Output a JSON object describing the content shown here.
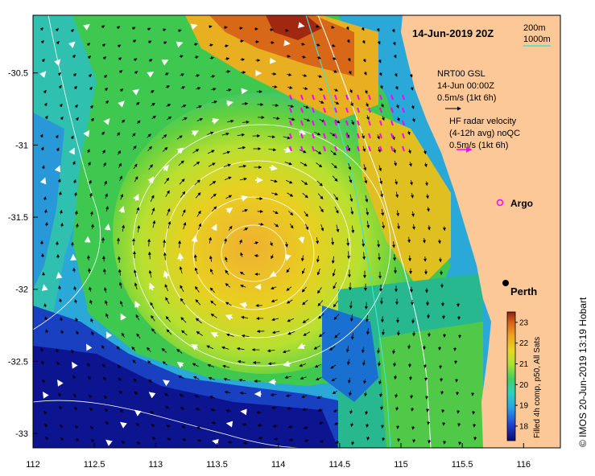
{
  "map": {
    "title": "14-Jun-2019 20Z",
    "lon_ticks": [
      "112",
      "112.5",
      "113",
      "113.5",
      "114",
      "114.5",
      "115",
      "115.5",
      "116"
    ],
    "lat_ticks": [
      "-30.5",
      "-31",
      "-31.5",
      "-32",
      "-32.5",
      "-33"
    ],
    "lon_range": [
      112,
      116.3
    ],
    "lat_range": [
      -33.1,
      -30.1
    ],
    "isobath_legend": [
      "200m",
      "1000m"
    ],
    "isobath_colors": [
      "#ffffff",
      "#40e0d0"
    ],
    "gsl_note": [
      "NRT00 GSL",
      "14-Jun 00:00Z",
      "0.5m/s (1kt 6h)"
    ],
    "hf_note": [
      "HF radar velocity",
      "(4-12h avg) noQC",
      "0.5m/s (1kt 6h)"
    ],
    "argo_label": "Argo",
    "city_label": "Perth",
    "credit": "© IMOS 20-Jun-2019 13:19 Hobart",
    "land_color": "#fcc898",
    "arrow_color": "#000000",
    "hf_arrow_color": "#ff00ff",
    "colorbar": {
      "title": "Filled 4h comp, p50, All Sats",
      "labels": [
        "23",
        "22",
        "21",
        "20",
        "19",
        "18"
      ],
      "min": 17.3,
      "max": 23.5,
      "stops": [
        "#0a0a70",
        "#1f3fd0",
        "#23a0e8",
        "#30d0c0",
        "#3ed060",
        "#b0e030",
        "#e8d820",
        "#f0a020",
        "#d86018",
        "#902010"
      ]
    }
  }
}
